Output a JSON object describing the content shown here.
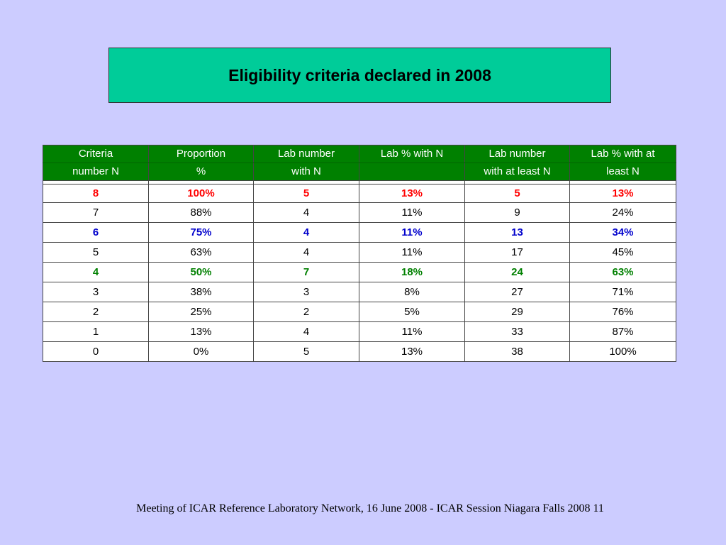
{
  "title": "Eligibility criteria declared in 2008",
  "table": {
    "headers_line1": [
      "Criteria",
      "Proportion",
      "Lab number",
      "Lab % with N",
      "Lab number",
      "Lab % with at"
    ],
    "headers_line2": [
      "number N",
      "%",
      "with N",
      "",
      "with at least N",
      "least N"
    ],
    "rows": [
      {
        "style": "red",
        "cells": [
          "8",
          "100%",
          "5",
          "13%",
          "5",
          "13%"
        ]
      },
      {
        "style": "plain",
        "cells": [
          "7",
          "88%",
          "4",
          "11%",
          "9",
          "24%"
        ]
      },
      {
        "style": "blue",
        "cells": [
          "6",
          "75%",
          "4",
          "11%",
          "13",
          "34%"
        ]
      },
      {
        "style": "plain",
        "cells": [
          "5",
          "63%",
          "4",
          "11%",
          "17",
          "45%"
        ]
      },
      {
        "style": "green",
        "cells": [
          "4",
          "50%",
          "7",
          "18%",
          "24",
          "63%"
        ]
      },
      {
        "style": "plain",
        "cells": [
          "3",
          "38%",
          "3",
          "8%",
          "27",
          "71%"
        ]
      },
      {
        "style": "plain",
        "cells": [
          "2",
          "25%",
          "2",
          "5%",
          "29",
          "76%"
        ]
      },
      {
        "style": "plain",
        "cells": [
          "1",
          "13%",
          "4",
          "11%",
          "33",
          "87%"
        ]
      },
      {
        "style": "plain",
        "cells": [
          "0",
          "0%",
          "5",
          "13%",
          "38",
          "100%"
        ]
      }
    ]
  },
  "colors": {
    "background": "#ccccff",
    "title_box": "#00cc99",
    "header": "#008000",
    "red": "#ff0000",
    "blue": "#0000cc",
    "green": "#008000"
  },
  "footer": "Meeting of ICAR Reference Laboratory Network,  16 June 2008 - ICAR Session Niagara Falls 2008 11"
}
